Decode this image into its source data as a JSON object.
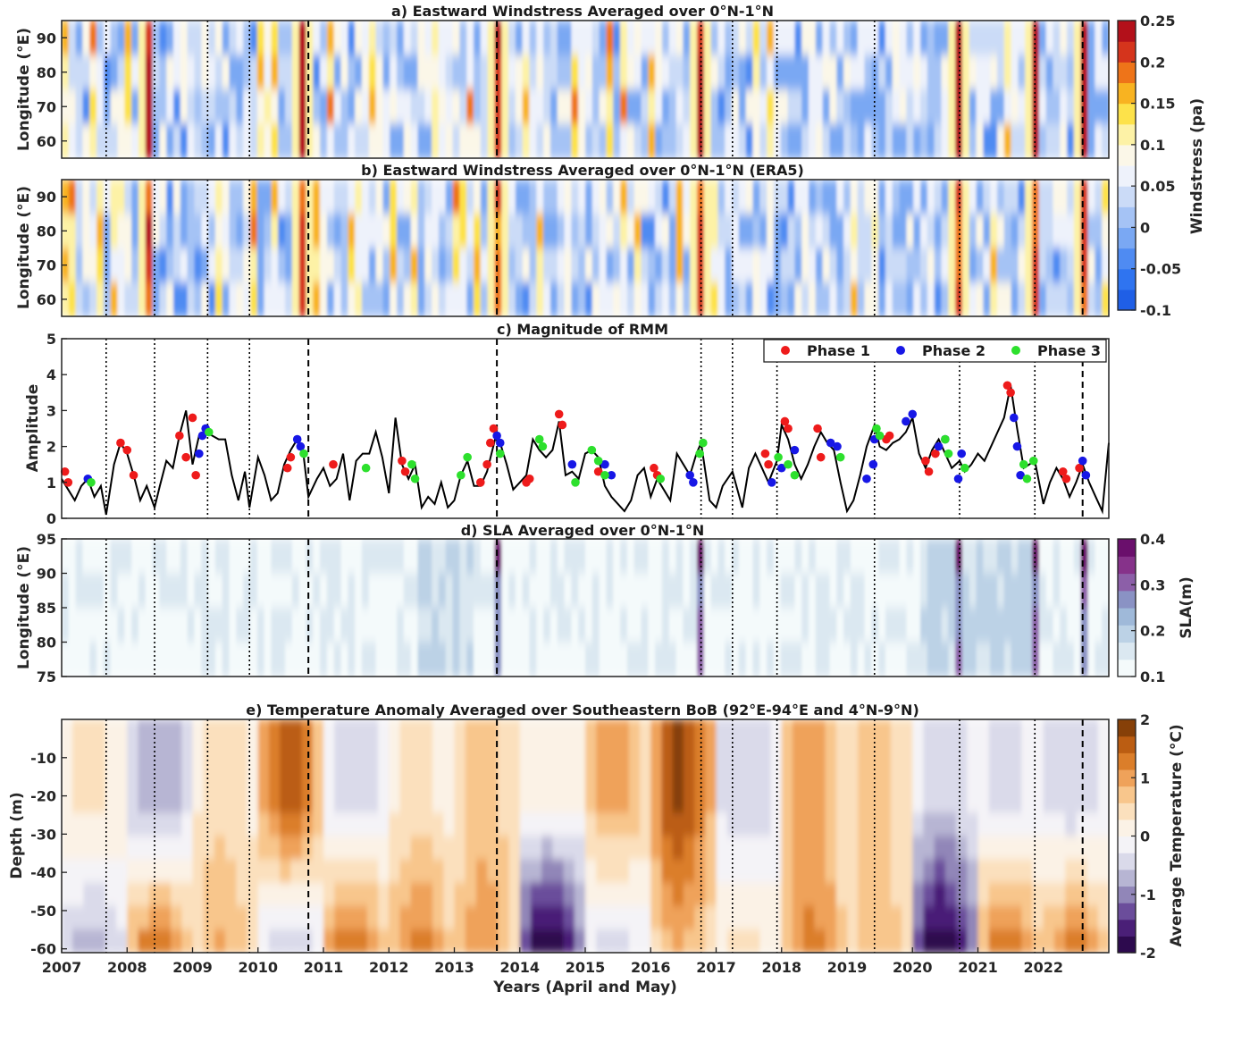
{
  "palette": {
    "wind": [
      "#1f5fe6",
      "#2f74f0",
      "#4f8bf2",
      "#7aa8f3",
      "#a5c3f5",
      "#cbdbf7",
      "#eef2fb",
      "#fbf7e8",
      "#fdf2a6",
      "#fde24a",
      "#f8b321",
      "#ee7419",
      "#d5341c",
      "#b3101a"
    ],
    "sla": [
      "#f4fafb",
      "#dbe8f1",
      "#bcd2e6",
      "#9fb9d9",
      "#8a92c4",
      "#8c5fa8",
      "#86328a",
      "#6a0f6c"
    ],
    "temp": [
      "#2d0a4e",
      "#4a1f77",
      "#6b4d9b",
      "#9186b8",
      "#b7b5d3",
      "#dadaea",
      "#f4f3f7",
      "#fbf2e6",
      "#fbe0bd",
      "#f8c68c",
      "#efa25a",
      "#db7e2a",
      "#bb5d12",
      "#864008"
    ],
    "phase1": "#ee1b1b",
    "phase2": "#1717e6",
    "phase3": "#2de02d"
  },
  "titles": {
    "a": "a) Eastward Windstress Averaged over 0°N-1°N",
    "b": "b) Eastward Windstress Averaged over 0°N-1°N (ERA5)",
    "c": "c) Magnitude of RMM",
    "d": "d) SLA Averaged over 0°N-1°N",
    "e": "e) Temperature Anomaly Averaged over Southeastern BoB (92°E-94°E and 4°N-9°N)"
  },
  "axis_labels": {
    "a_y": "Longitude (°E)",
    "b_y": "Longitude (°E)",
    "c_y": "Amplitude",
    "d_y": "Longitude (°E)",
    "e_y": "Depth (m)",
    "x": "Years (April and May)"
  },
  "colorbars": {
    "wind": {
      "label": "Windstress (pa)",
      "ticks": [
        "0.25",
        "0.2",
        "0.15",
        "0.1",
        "0.05",
        "0",
        "-0.05",
        "-0.1"
      ]
    },
    "sla": {
      "label": "SLA(m)",
      "ticks": [
        "0.4",
        "0.3",
        "0.2",
        "0.1"
      ]
    },
    "temp": {
      "label": "Average Temperature (°C)",
      "ticks": [
        "2",
        "1",
        "0",
        "-1",
        "-2"
      ]
    }
  },
  "legend": [
    {
      "label": "Phase 1",
      "color_key": "phase1"
    },
    {
      "label": "Phase 2",
      "color_key": "phase2"
    },
    {
      "label": "Phase 3",
      "color_key": "phase3"
    }
  ],
  "chart_data": [
    {
      "panel": "a",
      "type": "heatmap",
      "title": "a) Eastward Windstress Averaged over 0°N-1°N",
      "ylabel": "Longitude (°E)",
      "ylim": [
        55,
        95
      ],
      "yticks": [
        60,
        70,
        80,
        90
      ],
      "colorbar_range": [
        -0.1,
        0.25
      ],
      "dashed_years": [
        2010.77,
        2013.65,
        2022.6
      ],
      "dotted_years": [
        2007.68,
        2008.42,
        2009.23,
        2009.87,
        2016.77,
        2017.25,
        2017.93,
        2019.42,
        2020.72,
        2021.87
      ],
      "strong_events": [
        2008.3,
        2010.7,
        2013.65,
        2016.77,
        2020.72,
        2021.85,
        2022.6
      ]
    },
    {
      "panel": "b",
      "type": "heatmap",
      "title": "b) Eastward Windstress Averaged over 0°N-1°N (ERA5)",
      "ylabel": "Longitude (°E)",
      "ylim": [
        55,
        95
      ],
      "yticks": [
        60,
        70,
        80,
        90
      ],
      "colorbar_range": [
        -0.1,
        0.25
      ]
    },
    {
      "panel": "c",
      "type": "line",
      "title": "c) Magnitude of RMM",
      "ylabel": "Amplitude",
      "ylim": [
        0,
        5
      ],
      "yticks": [
        0,
        1,
        2,
        3,
        4,
        5
      ],
      "amplitude_series": [
        [
          2007.0,
          1.1
        ],
        [
          2007.1,
          0.8
        ],
        [
          2007.2,
          0.5
        ],
        [
          2007.3,
          0.9
        ],
        [
          2007.4,
          1.1
        ],
        [
          2007.5,
          0.6
        ],
        [
          2007.6,
          0.9
        ],
        [
          2007.68,
          0.1
        ],
        [
          2007.8,
          1.5
        ],
        [
          2007.9,
          2.1
        ],
        [
          2008.0,
          1.8
        ],
        [
          2008.1,
          1.2
        ],
        [
          2008.2,
          0.5
        ],
        [
          2008.3,
          0.9
        ],
        [
          2008.42,
          0.3
        ],
        [
          2008.5,
          0.9
        ],
        [
          2008.6,
          1.6
        ],
        [
          2008.7,
          1.4
        ],
        [
          2008.8,
          2.3
        ],
        [
          2008.9,
          3.0
        ],
        [
          2009.0,
          1.5
        ],
        [
          2009.1,
          2.3
        ],
        [
          2009.2,
          2.4
        ],
        [
          2009.3,
          2.3
        ],
        [
          2009.4,
          2.2
        ],
        [
          2009.5,
          2.2
        ],
        [
          2009.6,
          1.2
        ],
        [
          2009.7,
          0.5
        ],
        [
          2009.8,
          1.3
        ],
        [
          2009.87,
          0.3
        ],
        [
          2010.0,
          1.7
        ],
        [
          2010.1,
          1.2
        ],
        [
          2010.2,
          0.5
        ],
        [
          2010.3,
          0.7
        ],
        [
          2010.4,
          1.5
        ],
        [
          2010.5,
          1.9
        ],
        [
          2010.6,
          2.2
        ],
        [
          2010.7,
          1.7
        ],
        [
          2010.77,
          0.6
        ],
        [
          2010.9,
          1.1
        ],
        [
          2011.0,
          1.4
        ],
        [
          2011.1,
          0.9
        ],
        [
          2011.2,
          1.1
        ],
        [
          2011.3,
          1.8
        ],
        [
          2011.4,
          0.5
        ],
        [
          2011.5,
          1.6
        ],
        [
          2011.6,
          1.8
        ],
        [
          2011.7,
          1.8
        ],
        [
          2011.8,
          2.4
        ],
        [
          2011.9,
          1.7
        ],
        [
          2012.0,
          0.7
        ],
        [
          2012.1,
          2.8
        ],
        [
          2012.2,
          1.5
        ],
        [
          2012.3,
          1.1
        ],
        [
          2012.4,
          1.5
        ],
        [
          2012.5,
          0.3
        ],
        [
          2012.6,
          0.6
        ],
        [
          2012.7,
          0.4
        ],
        [
          2012.8,
          1.0
        ],
        [
          2012.9,
          0.3
        ],
        [
          2013.0,
          0.5
        ],
        [
          2013.1,
          1.2
        ],
        [
          2013.2,
          1.6
        ],
        [
          2013.3,
          0.9
        ],
        [
          2013.4,
          0.9
        ],
        [
          2013.5,
          1.3
        ],
        [
          2013.65,
          2.4
        ],
        [
          2013.8,
          1.5
        ],
        [
          2013.9,
          0.8
        ],
        [
          2014.0,
          1.0
        ],
        [
          2014.1,
          1.2
        ],
        [
          2014.2,
          2.2
        ],
        [
          2014.3,
          1.9
        ],
        [
          2014.4,
          1.7
        ],
        [
          2014.5,
          1.9
        ],
        [
          2014.6,
          2.7
        ],
        [
          2014.7,
          1.2
        ],
        [
          2014.8,
          1.3
        ],
        [
          2014.9,
          1.1
        ],
        [
          2015.0,
          1.8
        ],
        [
          2015.1,
          1.9
        ],
        [
          2015.2,
          1.7
        ],
        [
          2015.3,
          0.9
        ],
        [
          2015.4,
          0.6
        ],
        [
          2015.5,
          0.4
        ],
        [
          2015.6,
          0.2
        ],
        [
          2015.7,
          0.5
        ],
        [
          2015.8,
          1.2
        ],
        [
          2015.9,
          1.4
        ],
        [
          2016.0,
          0.6
        ],
        [
          2016.1,
          1.1
        ],
        [
          2016.2,
          0.8
        ],
        [
          2016.3,
          0.5
        ],
        [
          2016.4,
          1.8
        ],
        [
          2016.5,
          1.5
        ],
        [
          2016.6,
          1.2
        ],
        [
          2016.7,
          1.8
        ],
        [
          2016.77,
          2.1
        ],
        [
          2016.9,
          0.5
        ],
        [
          2017.0,
          0.3
        ],
        [
          2017.1,
          0.9
        ],
        [
          2017.25,
          1.3
        ],
        [
          2017.4,
          0.3
        ],
        [
          2017.5,
          1.4
        ],
        [
          2017.6,
          1.8
        ],
        [
          2017.7,
          1.4
        ],
        [
          2017.8,
          1.0
        ],
        [
          2017.93,
          1.6
        ],
        [
          2018.0,
          2.6
        ],
        [
          2018.1,
          2.2
        ],
        [
          2018.2,
          1.5
        ],
        [
          2018.3,
          1.1
        ],
        [
          2018.4,
          1.5
        ],
        [
          2018.5,
          2.0
        ],
        [
          2018.6,
          2.4
        ],
        [
          2018.7,
          2.1
        ],
        [
          2018.8,
          1.9
        ],
        [
          2018.9,
          1.0
        ],
        [
          2019.0,
          0.2
        ],
        [
          2019.1,
          0.5
        ],
        [
          2019.2,
          1.2
        ],
        [
          2019.3,
          2.0
        ],
        [
          2019.42,
          2.6
        ],
        [
          2019.5,
          2.0
        ],
        [
          2019.6,
          1.9
        ],
        [
          2019.7,
          2.1
        ],
        [
          2019.8,
          2.2
        ],
        [
          2019.9,
          2.4
        ],
        [
          2020.0,
          2.8
        ],
        [
          2020.1,
          1.8
        ],
        [
          2020.2,
          1.4
        ],
        [
          2020.3,
          1.9
        ],
        [
          2020.4,
          2.2
        ],
        [
          2020.5,
          1.8
        ],
        [
          2020.6,
          1.4
        ],
        [
          2020.72,
          1.6
        ],
        [
          2020.8,
          1.3
        ],
        [
          2020.9,
          1.5
        ],
        [
          2021.0,
          1.8
        ],
        [
          2021.1,
          1.6
        ],
        [
          2021.2,
          2.0
        ],
        [
          2021.3,
          2.4
        ],
        [
          2021.4,
          2.8
        ],
        [
          2021.5,
          3.7
        ],
        [
          2021.6,
          2.5
        ],
        [
          2021.7,
          1.4
        ],
        [
          2021.87,
          1.6
        ],
        [
          2022.0,
          0.4
        ],
        [
          2022.1,
          1.0
        ],
        [
          2022.2,
          1.4
        ],
        [
          2022.3,
          1.1
        ],
        [
          2022.4,
          0.6
        ],
        [
          2022.5,
          1.0
        ],
        [
          2022.6,
          1.5
        ],
        [
          2022.7,
          1.0
        ],
        [
          2022.8,
          0.6
        ],
        [
          2022.9,
          0.2
        ],
        [
          2023.0,
          2.1
        ]
      ],
      "phase1_points": [
        [
          2007.05,
          1.3
        ],
        [
          2007.1,
          1.0
        ],
        [
          2007.9,
          2.1
        ],
        [
          2008.0,
          1.9
        ],
        [
          2008.1,
          1.2
        ],
        [
          2008.8,
          2.3
        ],
        [
          2008.9,
          1.7
        ],
        [
          2009.0,
          2.8
        ],
        [
          2009.05,
          1.2
        ],
        [
          2010.45,
          1.4
        ],
        [
          2010.5,
          1.7
        ],
        [
          2011.15,
          1.5
        ],
        [
          2012.2,
          1.6
        ],
        [
          2012.25,
          1.3
        ],
        [
          2013.4,
          1.0
        ],
        [
          2013.5,
          1.5
        ],
        [
          2013.55,
          2.1
        ],
        [
          2013.6,
          2.5
        ],
        [
          2014.1,
          1.0
        ],
        [
          2014.15,
          1.1
        ],
        [
          2014.6,
          2.9
        ],
        [
          2014.65,
          2.6
        ],
        [
          2015.2,
          1.3
        ],
        [
          2016.05,
          1.4
        ],
        [
          2016.1,
          1.2
        ],
        [
          2017.75,
          1.8
        ],
        [
          2017.8,
          1.5
        ],
        [
          2018.05,
          2.7
        ],
        [
          2018.1,
          2.5
        ],
        [
          2018.55,
          2.5
        ],
        [
          2018.6,
          1.7
        ],
        [
          2019.6,
          2.2
        ],
        [
          2019.65,
          2.3
        ],
        [
          2020.2,
          1.6
        ],
        [
          2020.25,
          1.3
        ],
        [
          2020.35,
          1.8
        ],
        [
          2021.45,
          3.7
        ],
        [
          2021.5,
          3.5
        ],
        [
          2022.3,
          1.3
        ],
        [
          2022.35,
          1.1
        ],
        [
          2022.55,
          1.4
        ]
      ],
      "phase2_points": [
        [
          2007.4,
          1.1
        ],
        [
          2009.1,
          1.8
        ],
        [
          2009.15,
          2.3
        ],
        [
          2009.2,
          2.5
        ],
        [
          2010.6,
          2.2
        ],
        [
          2010.65,
          2.0
        ],
        [
          2013.65,
          2.3
        ],
        [
          2013.7,
          2.1
        ],
        [
          2014.8,
          1.5
        ],
        [
          2015.3,
          1.5
        ],
        [
          2015.4,
          1.2
        ],
        [
          2016.6,
          1.2
        ],
        [
          2016.65,
          1.0
        ],
        [
          2017.85,
          1.0
        ],
        [
          2018.0,
          1.4
        ],
        [
          2018.2,
          1.9
        ],
        [
          2018.75,
          2.1
        ],
        [
          2018.85,
          2.0
        ],
        [
          2019.3,
          1.1
        ],
        [
          2019.4,
          1.5
        ],
        [
          2019.42,
          2.2
        ],
        [
          2019.9,
          2.7
        ],
        [
          2020.0,
          2.9
        ],
        [
          2020.4,
          2.0
        ],
        [
          2020.5,
          2.2
        ],
        [
          2020.7,
          1.1
        ],
        [
          2020.75,
          1.8
        ],
        [
          2021.55,
          2.8
        ],
        [
          2021.6,
          2.0
        ],
        [
          2021.65,
          1.2
        ],
        [
          2022.6,
          1.6
        ],
        [
          2022.65,
          1.2
        ]
      ],
      "phase3_points": [
        [
          2007.45,
          1.0
        ],
        [
          2009.25,
          2.4
        ],
        [
          2010.7,
          1.8
        ],
        [
          2011.65,
          1.4
        ],
        [
          2012.35,
          1.5
        ],
        [
          2012.4,
          1.1
        ],
        [
          2013.1,
          1.2
        ],
        [
          2013.2,
          1.7
        ],
        [
          2013.7,
          1.8
        ],
        [
          2014.3,
          2.2
        ],
        [
          2014.35,
          2.0
        ],
        [
          2014.85,
          1.0
        ],
        [
          2015.1,
          1.9
        ],
        [
          2015.2,
          1.6
        ],
        [
          2015.3,
          1.2
        ],
        [
          2016.15,
          1.1
        ],
        [
          2016.75,
          1.8
        ],
        [
          2016.8,
          2.1
        ],
        [
          2017.95,
          1.7
        ],
        [
          2018.1,
          1.5
        ],
        [
          2018.2,
          1.2
        ],
        [
          2018.9,
          1.7
        ],
        [
          2019.45,
          2.5
        ],
        [
          2019.5,
          2.3
        ],
        [
          2020.5,
          2.2
        ],
        [
          2020.55,
          1.8
        ],
        [
          2020.8,
          1.4
        ],
        [
          2021.7,
          1.5
        ],
        [
          2021.75,
          1.1
        ],
        [
          2021.85,
          1.6
        ]
      ]
    },
    {
      "panel": "d",
      "type": "heatmap",
      "title": "d) SLA Averaged over 0°N-1°N",
      "ylabel": "Longitude (°E)",
      "ylim": [
        75,
        95
      ],
      "yticks": [
        75,
        80,
        85,
        90,
        95
      ],
      "colorbar_range": [
        0.1,
        0.4
      ],
      "strong_events": [
        2013.65,
        2016.77,
        2020.72,
        2021.87,
        2022.6
      ]
    },
    {
      "panel": "e",
      "type": "heatmap",
      "title": "e) Temperature Anomaly Averaged over Southeastern BoB (92°E-94°E and 4°N-9°N)",
      "ylabel": "Depth (m)",
      "xlabel": "Years (April and May)",
      "ylim": [
        -61,
        0
      ],
      "yticks": [
        -10,
        -20,
        -30,
        -40,
        -50,
        -60
      ],
      "xlim": [
        2007,
        2023
      ],
      "xticks": [
        2007,
        2008,
        2009,
        2010,
        2011,
        2012,
        2013,
        2014,
        2015,
        2016,
        2017,
        2018,
        2019,
        2020,
        2021,
        2022
      ],
      "colorbar_range": [
        -2,
        2
      ],
      "year_anomaly_surface": {
        "2007": 0.3,
        "2008": -0.7,
        "2009": 0.4,
        "2010": 1.4,
        "2011": -0.4,
        "2012": 0.3,
        "2013": 0.6,
        "2014": 0.1,
        "2015": 0.9,
        "2016": 1.6,
        "2017": -0.5,
        "2018": 0.9,
        "2019": 0.6,
        "2020": -0.4,
        "2021": -0.3,
        "2022": -0.5
      },
      "year_anomaly_deep": {
        "2007": -0.6,
        "2008": 1.2,
        "2009": 0.8,
        "2010": -0.4,
        "2011": 1.3,
        "2012": 1.1,
        "2013": 1.0,
        "2014": -1.9,
        "2015": -0.3,
        "2016": 0.8,
        "2017": 0.3,
        "2018": 1.1,
        "2019": 0.7,
        "2020": -1.8,
        "2021": 1.2,
        "2022": 1.1
      }
    }
  ]
}
